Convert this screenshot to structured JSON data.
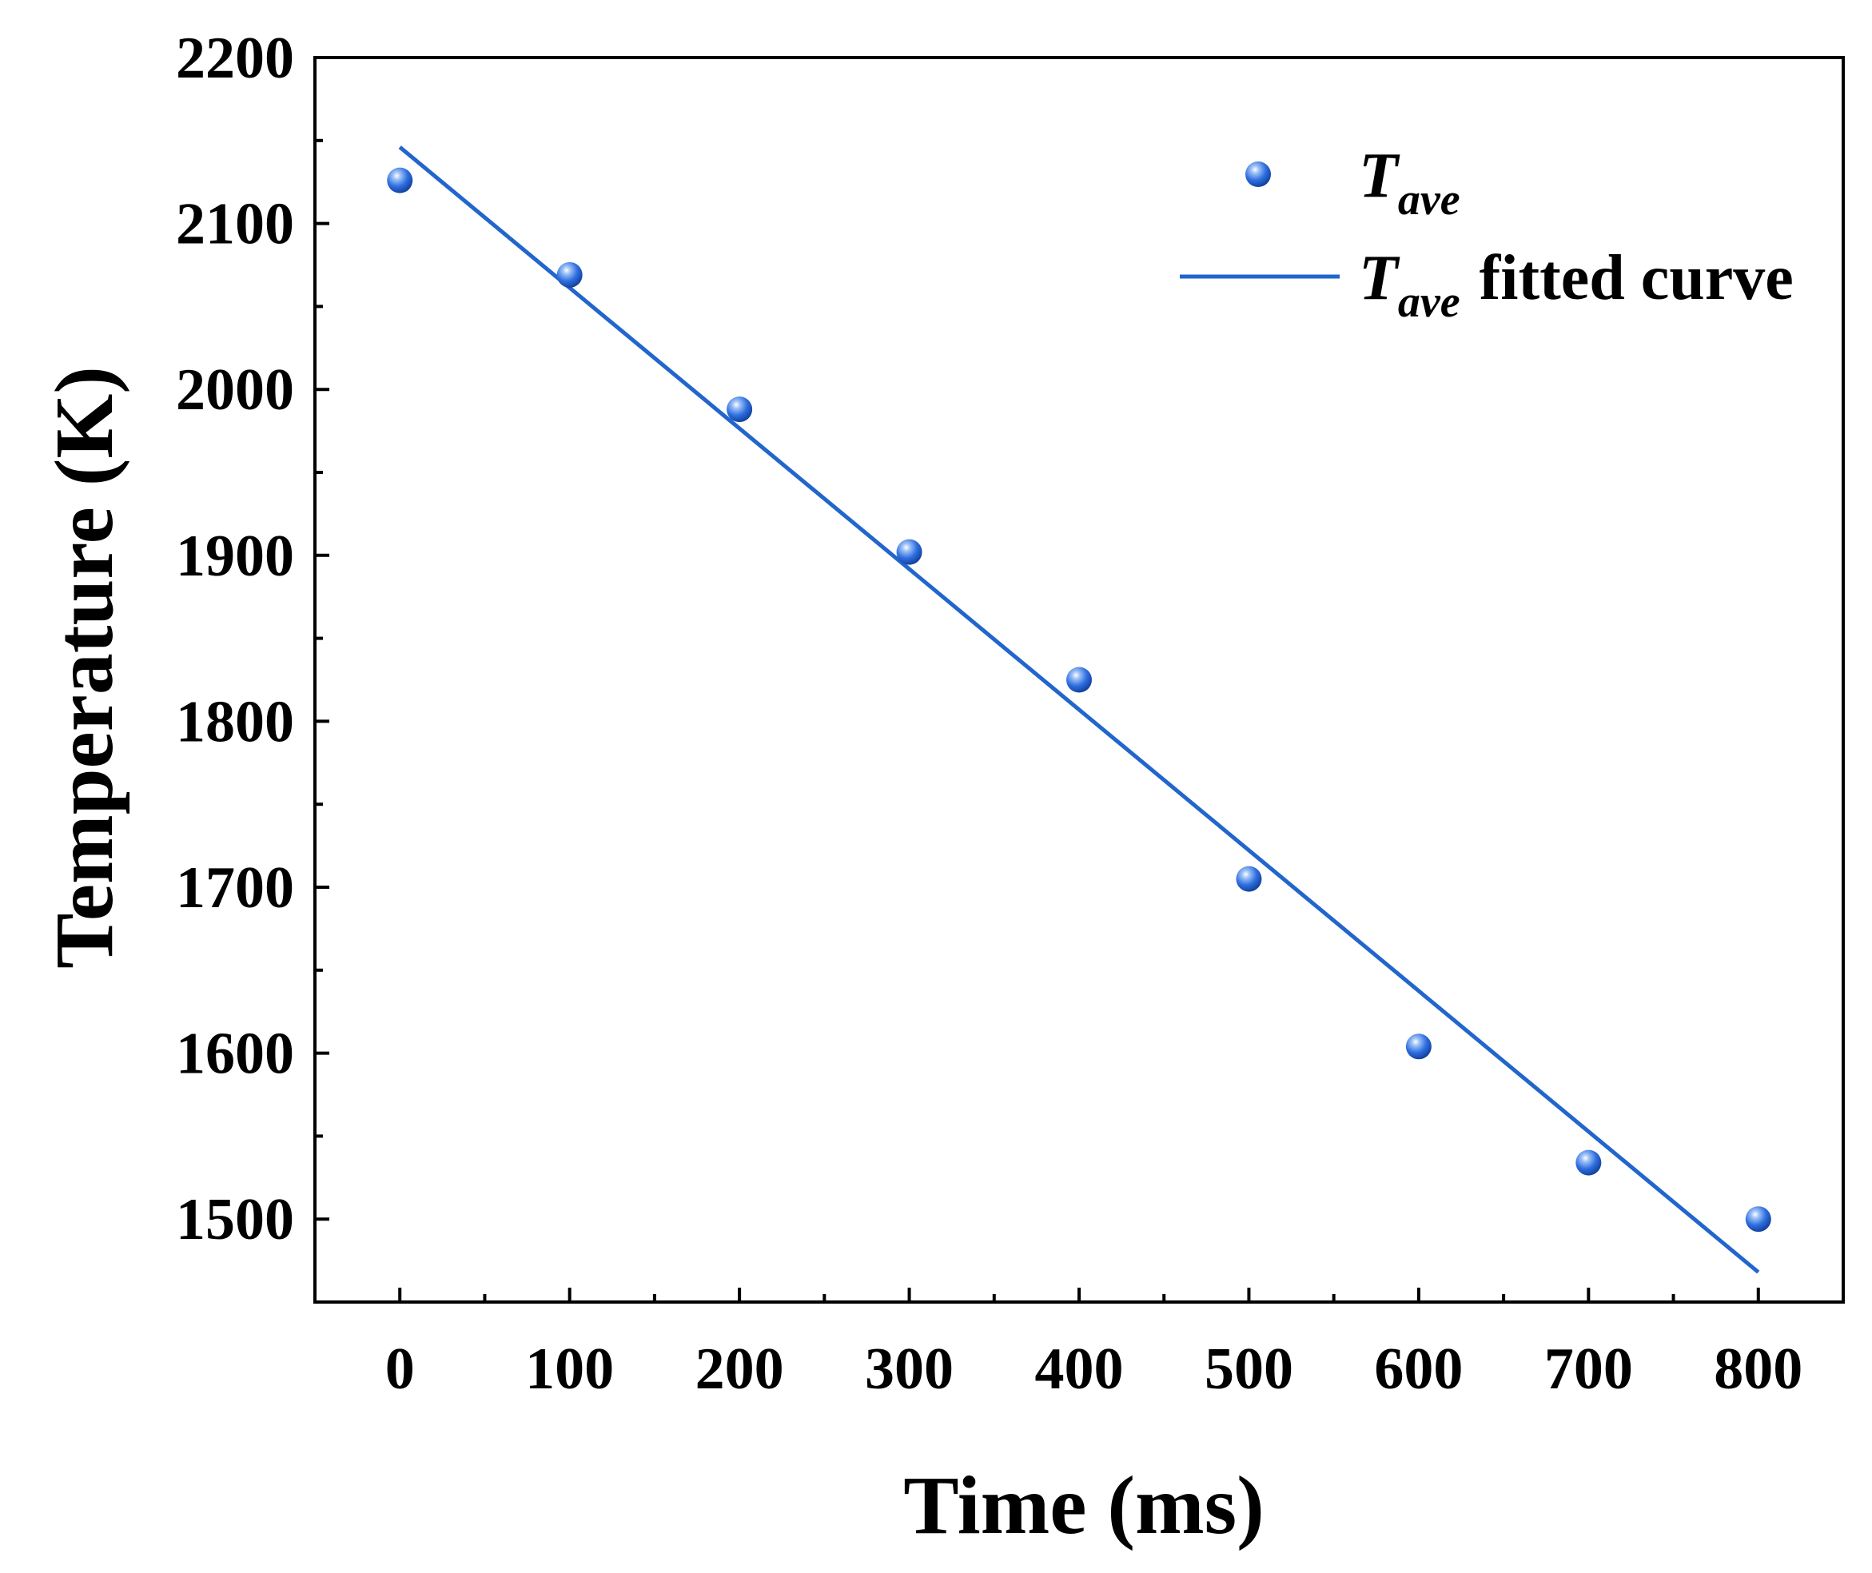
{
  "chart_data": {
    "type": "scatter",
    "title": "",
    "xlabel": "Time (ms)",
    "ylabel": "Temperature (K)",
    "xlim": [
      -50,
      850
    ],
    "ylim": [
      1450,
      2200
    ],
    "x_ticks": [
      0,
      100,
      200,
      300,
      400,
      500,
      600,
      700,
      800
    ],
    "y_ticks": [
      1500,
      1600,
      1700,
      1800,
      1900,
      2000,
      2100,
      2200
    ],
    "x_tick_labels": [
      "0",
      "100",
      "200",
      "300",
      "400",
      "500",
      "600",
      "700",
      "800"
    ],
    "y_tick_labels": [
      "1500",
      "1600",
      "1700",
      "1800",
      "1900",
      "2000",
      "2100",
      "2200"
    ],
    "grid": false,
    "legend_position": "top-right",
    "series": [
      {
        "name": "T_ave",
        "kind": "scatter",
        "color": "#1f5fd6",
        "x": [
          0,
          100,
          200,
          300,
          400,
          500,
          600,
          700,
          800
        ],
        "y": [
          2126,
          2069,
          1988,
          1902,
          1825,
          1705,
          1604,
          1534,
          1500
        ]
      },
      {
        "name": "T_ave fitted curve",
        "kind": "line",
        "color": "#2266cc",
        "x": [
          0,
          800
        ],
        "y": [
          2146,
          1468
        ]
      }
    ],
    "legend": [
      {
        "symbol": "T",
        "subscript": "ave",
        "suffix": ""
      },
      {
        "symbol": "T",
        "subscript": "ave",
        "suffix": "fitted curve"
      }
    ]
  }
}
